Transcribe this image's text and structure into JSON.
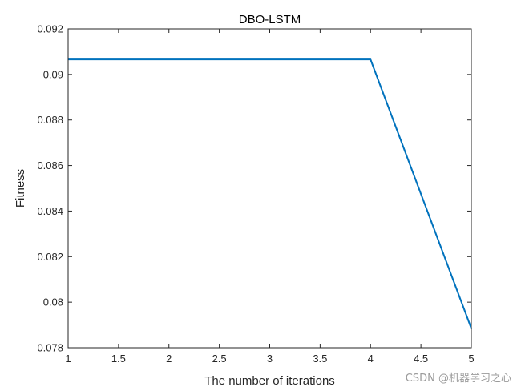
{
  "chart_data": {
    "type": "line",
    "title": "DBO-LSTM",
    "xlabel": "The number of iterations",
    "ylabel": "Fitness",
    "xlim": [
      1,
      5
    ],
    "ylim": [
      0.078,
      0.092
    ],
    "xticks": [
      1,
      1.5,
      2,
      2.5,
      3,
      3.5,
      4,
      4.5,
      5
    ],
    "xtick_labels": [
      "1",
      "1.5",
      "2",
      "2.5",
      "3",
      "3.5",
      "4",
      "4.5",
      "5"
    ],
    "yticks": [
      0.078,
      0.08,
      0.082,
      0.084,
      0.086,
      0.088,
      0.09,
      0.092
    ],
    "ytick_labels": [
      "0.078",
      "0.08",
      "0.082",
      "0.084",
      "0.086",
      "0.088",
      "0.09",
      "0.092"
    ],
    "grid": false,
    "series": [
      {
        "x": [
          1,
          2,
          3,
          4,
          5
        ],
        "y": [
          0.09066,
          0.09066,
          0.09066,
          0.09066,
          0.07885
        ],
        "color": "#0072BD"
      }
    ]
  },
  "watermark": "CSDN @机器学习之心"
}
